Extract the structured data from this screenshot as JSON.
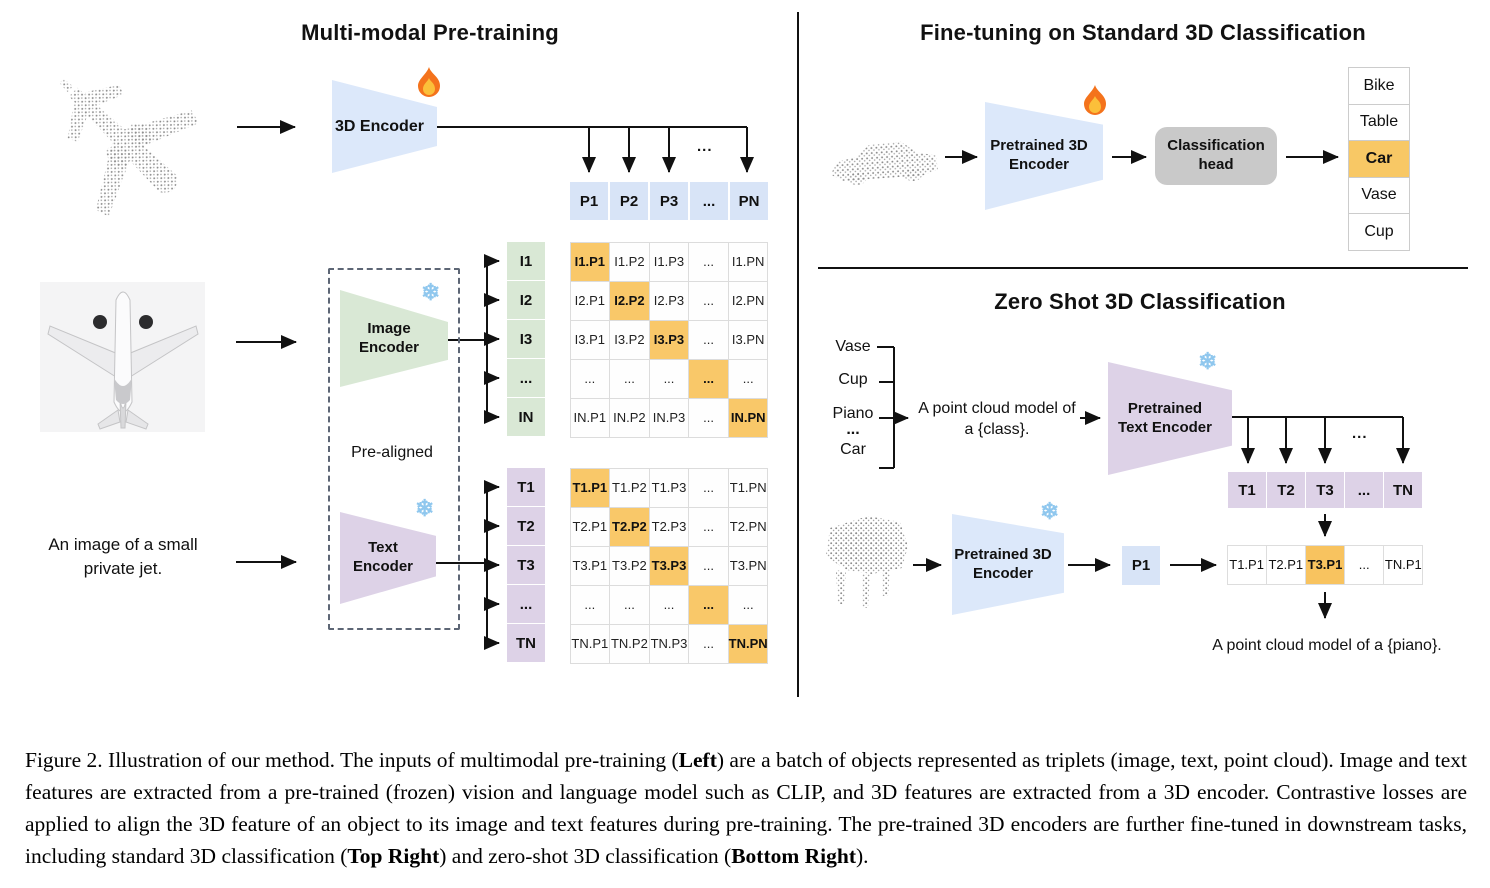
{
  "pretraining": {
    "title": "Multi-modal Pre-training",
    "encoder_3d_label": "3D Encoder",
    "image_encoder_label": "Image Encoder",
    "text_encoder_label": "Text Encoder",
    "prealigned_label": "Pre-aligned",
    "text_input_line1": "An image of a small",
    "text_input_line2": "private jet.",
    "ellipsis": "...",
    "p_row": [
      {
        "t": "P1"
      },
      {
        "t": "P2"
      },
      {
        "t": "P3"
      },
      {
        "t": "..."
      },
      {
        "t": "PN"
      }
    ],
    "i_col": [
      {
        "t": "I1"
      },
      {
        "t": "I2"
      },
      {
        "t": "I3"
      },
      {
        "t": "..."
      },
      {
        "t": "IN"
      }
    ],
    "t_col": [
      {
        "t": "T1"
      },
      {
        "t": "T2"
      },
      {
        "t": "T3"
      },
      {
        "t": "..."
      },
      {
        "t": "TN"
      }
    ],
    "i_matrix": [
      [
        {
          "t": "I1.P1",
          "h": 1
        },
        {
          "t": "I1.P2"
        },
        {
          "t": "I1.P3"
        },
        {
          "t": "..."
        },
        {
          "t": "I1.PN"
        }
      ],
      [
        {
          "t": "I2.P1"
        },
        {
          "t": "I2.P2",
          "h": 1
        },
        {
          "t": "I2.P3"
        },
        {
          "t": "..."
        },
        {
          "t": "I2.PN"
        }
      ],
      [
        {
          "t": "I3.P1"
        },
        {
          "t": "I3.P2"
        },
        {
          "t": "I3.P3",
          "h": 1
        },
        {
          "t": "..."
        },
        {
          "t": "I3.PN"
        }
      ],
      [
        {
          "t": "..."
        },
        {
          "t": "..."
        },
        {
          "t": "..."
        },
        {
          "t": "...",
          "h": 1
        },
        {
          "t": "..."
        }
      ],
      [
        {
          "t": "IN.P1"
        },
        {
          "t": "IN.P2"
        },
        {
          "t": "IN.P3"
        },
        {
          "t": "..."
        },
        {
          "t": "IN.PN",
          "h": 1
        }
      ]
    ],
    "t_matrix": [
      [
        {
          "t": "T1.P1",
          "h": 1
        },
        {
          "t": "T1.P2"
        },
        {
          "t": "T1.P3"
        },
        {
          "t": "..."
        },
        {
          "t": "T1.PN"
        }
      ],
      [
        {
          "t": "T2.P1"
        },
        {
          "t": "T2.P2",
          "h": 1
        },
        {
          "t": "T2.P3"
        },
        {
          "t": "..."
        },
        {
          "t": "T2.PN"
        }
      ],
      [
        {
          "t": "T3.P1"
        },
        {
          "t": "T3.P2"
        },
        {
          "t": "T3.P3",
          "h": 1
        },
        {
          "t": "..."
        },
        {
          "t": "T3.PN"
        }
      ],
      [
        {
          "t": "..."
        },
        {
          "t": "..."
        },
        {
          "t": "..."
        },
        {
          "t": "...",
          "h": 1
        },
        {
          "t": "..."
        }
      ],
      [
        {
          "t": "TN.P1"
        },
        {
          "t": "TN.P2"
        },
        {
          "t": "TN.P3"
        },
        {
          "t": "..."
        },
        {
          "t": "TN.PN",
          "h": 1
        }
      ]
    ]
  },
  "finetuning": {
    "title": "Fine-tuning on Standard 3D Classification",
    "encoder_label": "Pretrained 3D Encoder",
    "head_label": "Classification head",
    "classes": [
      {
        "t": "Bike"
      },
      {
        "t": "Table"
      },
      {
        "t": "Car",
        "h": 1
      },
      {
        "t": "Vase"
      },
      {
        "t": "Cup"
      }
    ]
  },
  "zeroshot": {
    "title": "Zero Shot 3D Classification",
    "class_labels": [
      {
        "t": "Vase"
      },
      {
        "t": "Cup"
      },
      {
        "t": "Piano"
      },
      {
        "t": "..."
      },
      {
        "t": "Car"
      }
    ],
    "prompt_line1": "A point cloud model of",
    "prompt_line2": "a {class}.",
    "text_encoder_label": "Pretrained Text Encoder",
    "encoder_3d_label": "Pretrained 3D Encoder",
    "p1_label": "P1",
    "ellipsis": "...",
    "t_row": [
      {
        "t": "T1"
      },
      {
        "t": "T2"
      },
      {
        "t": "T3"
      },
      {
        "t": "..."
      },
      {
        "t": "TN"
      }
    ],
    "tp_row": [
      {
        "t": "T1.P1"
      },
      {
        "t": "T2.P1"
      },
      {
        "t": "T3.P1",
        "h": 1
      },
      {
        "t": "..."
      },
      {
        "t": "TN.P1"
      }
    ],
    "result_text": "A point cloud model of a {piano}."
  },
  "caption": {
    "parts": [
      {
        "t": "Figure 2. Illustration of our method. The inputs of multimodal pre-training ("
      },
      {
        "t": "Left",
        "b": 1
      },
      {
        "t": ") are a batch of objects represented as triplets (image, text, point cloud). Image and text features are extracted from a pre-trained (frozen) vision and language model such as CLIP, and 3D features are extracted from a 3D encoder. Contrastive losses are applied to align the 3D feature of an object to its image and text features during pre-training. The pre-trained 3D encoders are further fine-tuned in downstream tasks, including standard 3D classification ("
      },
      {
        "t": "Top Right",
        "b": 1
      },
      {
        "t": ") and zero-shot 3D classification ("
      },
      {
        "t": "Bottom Right",
        "b": 1
      },
      {
        "t": ")."
      }
    ]
  },
  "colors": {
    "encoder_blue": "#dce8fa",
    "encoder_green": "#d9e8d5",
    "encoder_purple": "#ddd2e7",
    "highlight_orange": "#f9c869",
    "head_gray": "#c9c9c9"
  }
}
